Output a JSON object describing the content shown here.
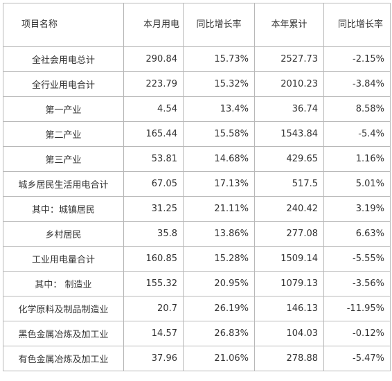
{
  "table": {
    "headers": [
      "项目名称",
      "本月用电",
      "同比增长率",
      "本年累计",
      "同比增长率"
    ],
    "rows": [
      [
        "全社会用电总计",
        "290.84",
        "15.73%",
        "2527.73",
        "-2.15%"
      ],
      [
        "全行业用电合计",
        "223.79",
        "15.32%",
        "2010.23",
        "-3.84%"
      ],
      [
        "第一产业",
        "4.54",
        "13.4%",
        "36.74",
        "8.58%"
      ],
      [
        "第二产业",
        "165.44",
        "15.58%",
        "1543.84",
        "-5.4%"
      ],
      [
        "第三产业",
        "53.81",
        "14.68%",
        "429.65",
        "1.16%"
      ],
      [
        "城乡居民生活用电合计",
        "67.05",
        "17.13%",
        "517.5",
        "5.01%"
      ],
      [
        "其中：城镇居民",
        "31.25",
        "21.11%",
        "240.42",
        "3.19%"
      ],
      [
        "乡村居民",
        "35.8",
        "13.86%",
        "277.08",
        "6.63%"
      ],
      [
        "工业用电量合计",
        "160.85",
        "15.28%",
        "1509.14",
        "-5.55%"
      ],
      [
        "其中： 制造业",
        "155.32",
        "20.95%",
        "1079.13",
        "-3.56%"
      ],
      [
        "化学原料及制品制造业",
        "20.7",
        "26.19%",
        "146.13",
        "-11.95%"
      ],
      [
        "黑色金属冶炼及加工业",
        "14.57",
        "26.83%",
        "104.03",
        "-0.12%"
      ],
      [
        "有色金属冶炼及加工业",
        "37.96",
        "21.06%",
        "278.88",
        "-5.47%"
      ]
    ]
  }
}
